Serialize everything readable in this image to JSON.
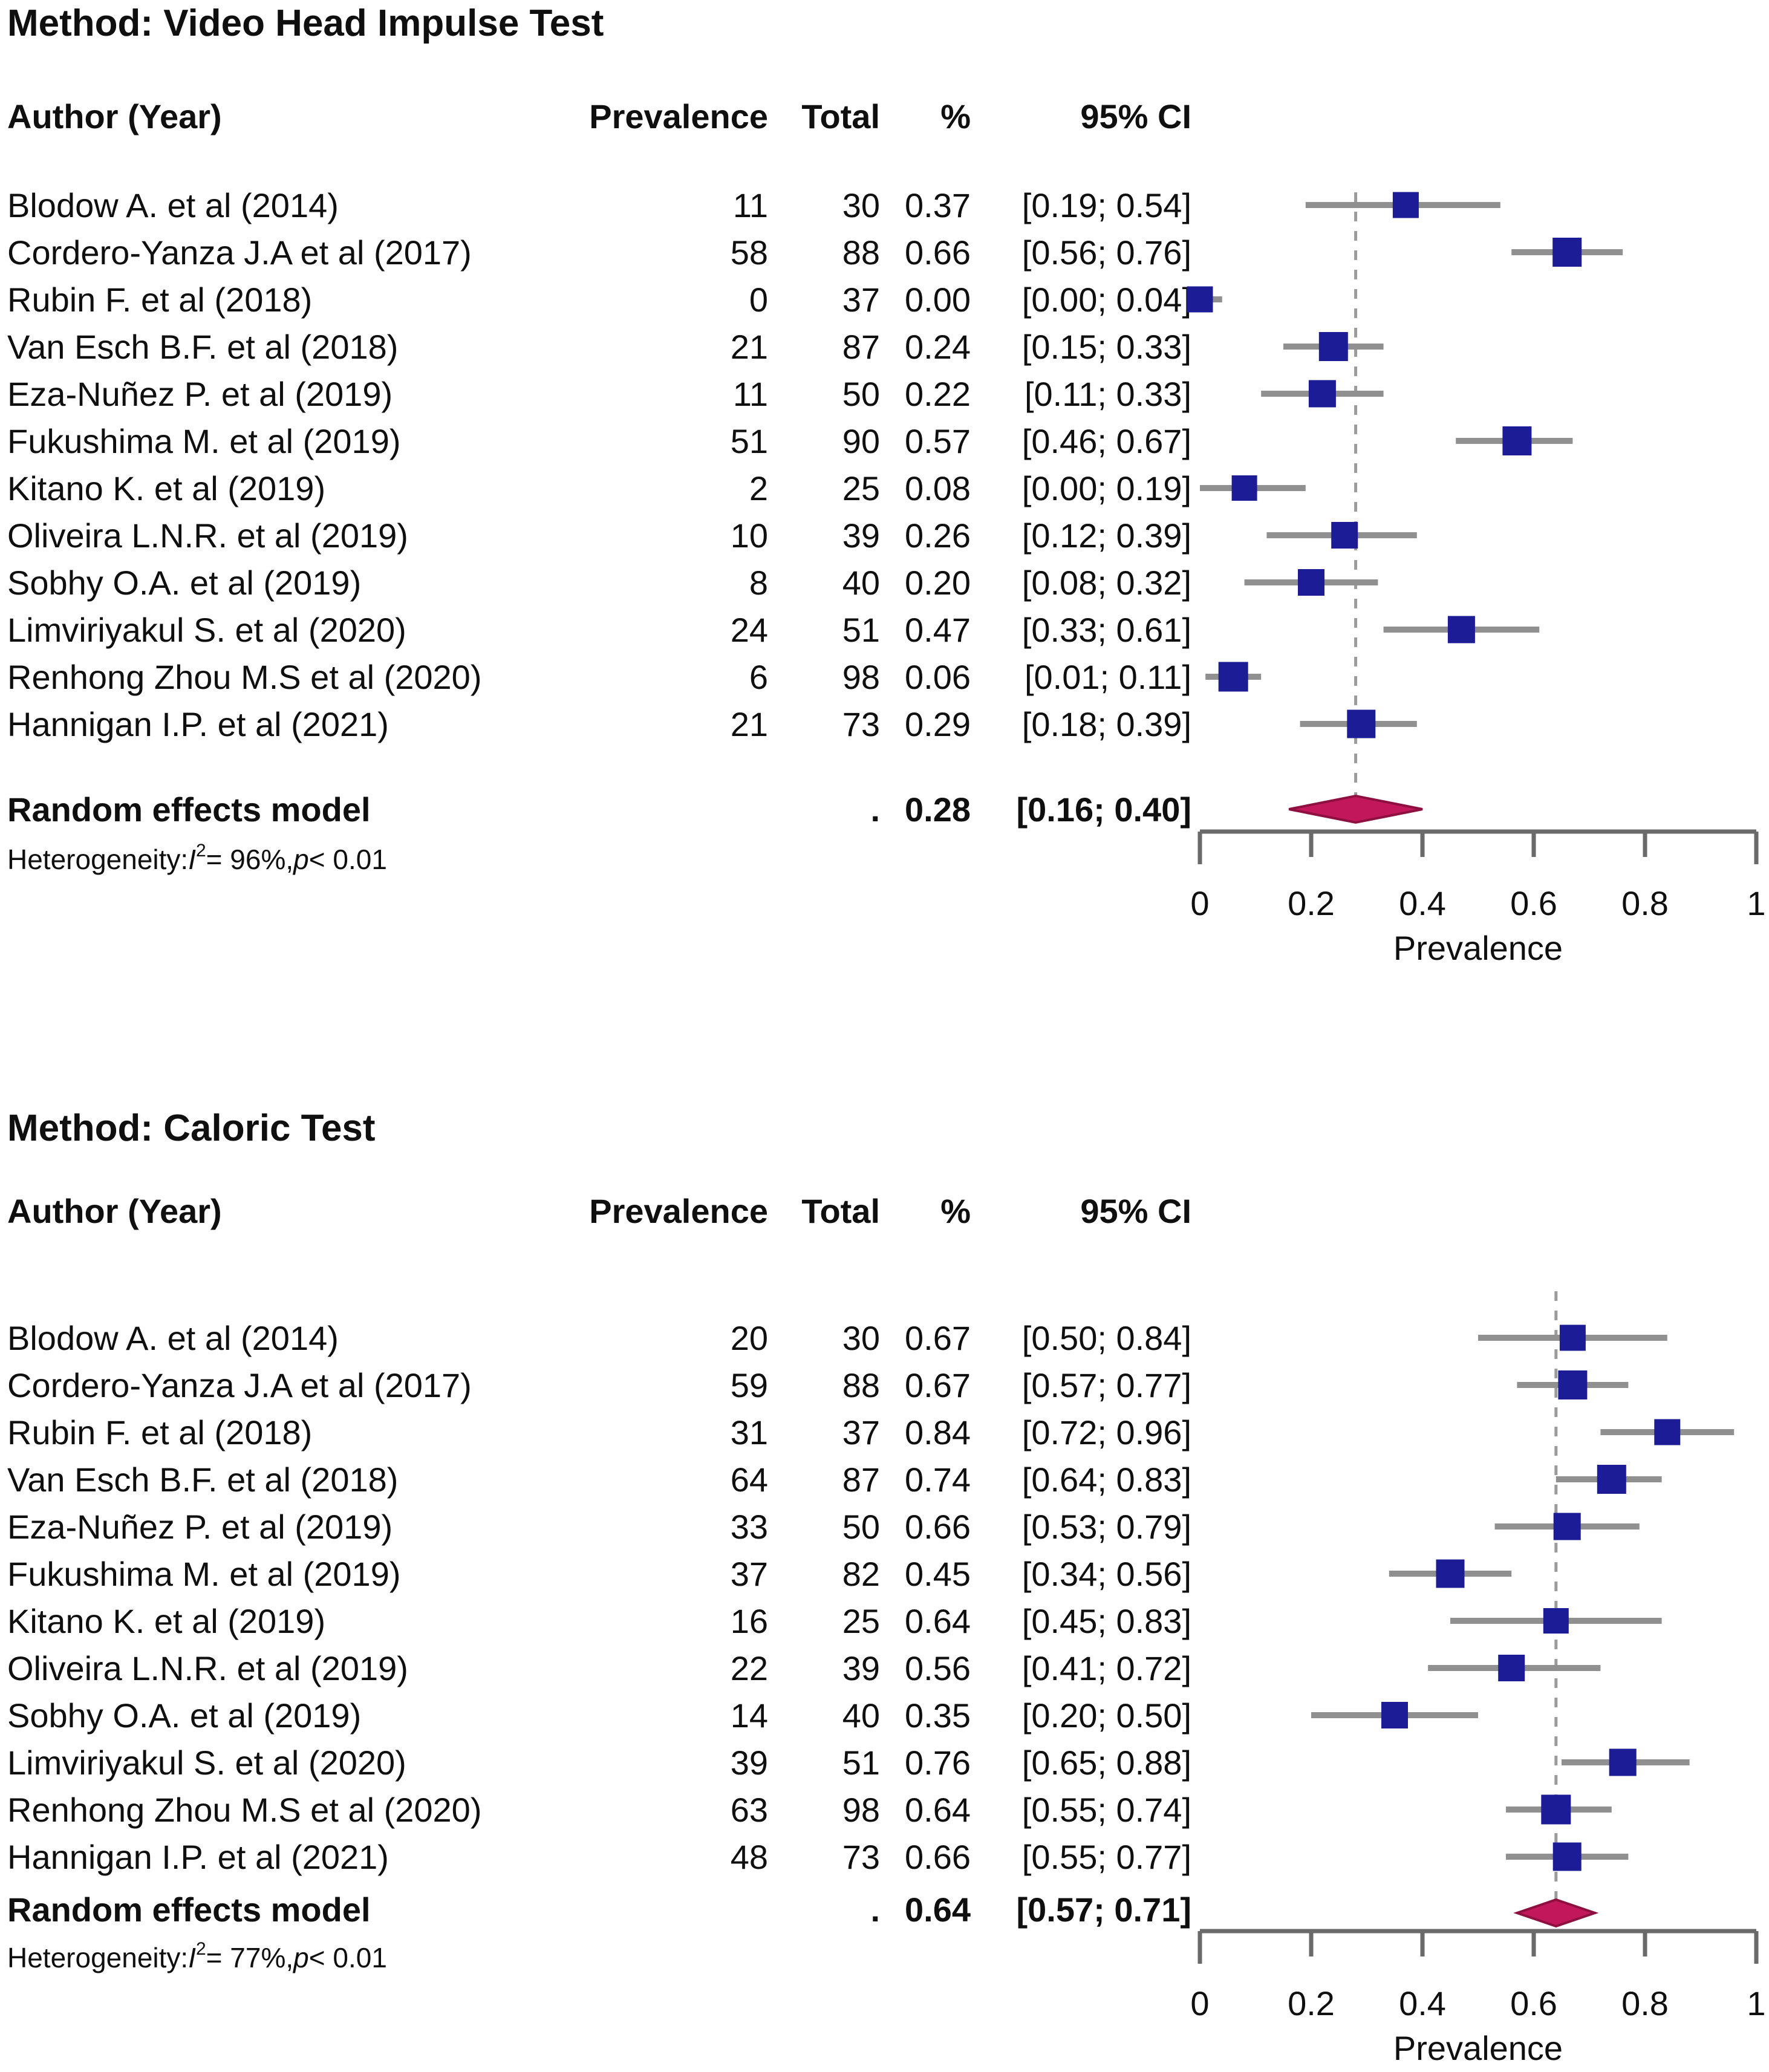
{
  "colors": {
    "text": "#0f0f0f",
    "square": "#1c1c96",
    "whisker": "#909090",
    "dashed_line": "#9b9b9b",
    "diamond_fill": "#c2185b",
    "diamond_stroke": "#8e1040",
    "axis": "#6a6a6a"
  },
  "chart_data": [
    {
      "type": "forest",
      "title": "Method: Video Head Impulse Test",
      "columns": [
        "Author (Year)",
        "Prevalence",
        "Total",
        "%",
        "95% CI"
      ],
      "xlabel": "Prevalence",
      "xlim": [
        0,
        1
      ],
      "xticks": [
        0,
        0.2,
        0.4,
        0.6,
        0.8,
        1
      ],
      "xtick_labels": [
        "0",
        "0.2",
        "0.4",
        "0.6",
        "0.8",
        "1"
      ],
      "studies": [
        {
          "author": "Blodow A. et al (2014)",
          "prevalence": "11",
          "total": "30",
          "pct": "0.37",
          "ci_text": "[0.19; 0.54]",
          "est": 0.37,
          "lo": 0.19,
          "hi": 0.54,
          "n": 30
        },
        {
          "author": "Cordero-Yanza J.A et al (2017)",
          "prevalence": "58",
          "total": "88",
          "pct": "0.66",
          "ci_text": "[0.56; 0.76]",
          "est": 0.66,
          "lo": 0.56,
          "hi": 0.76,
          "n": 88
        },
        {
          "author": "Rubin F. et al (2018)",
          "prevalence": "0",
          "total": "37",
          "pct": "0.00",
          "ci_text": "[0.00; 0.04]",
          "est": 0.0,
          "lo": 0.0,
          "hi": 0.04,
          "n": 37
        },
        {
          "author": "Van Esch B.F. et al (2018)",
          "prevalence": "21",
          "total": "87",
          "pct": "0.24",
          "ci_text": "[0.15; 0.33]",
          "est": 0.24,
          "lo": 0.15,
          "hi": 0.33,
          "n": 87
        },
        {
          "author": "Eza-Nuñez P. et al (2019)",
          "prevalence": "11",
          "total": "50",
          "pct": "0.22",
          "ci_text": "[0.11; 0.33]",
          "est": 0.22,
          "lo": 0.11,
          "hi": 0.33,
          "n": 50
        },
        {
          "author": "Fukushima M. et al (2019)",
          "prevalence": "51",
          "total": "90",
          "pct": "0.57",
          "ci_text": "[0.46; 0.67]",
          "est": 0.57,
          "lo": 0.46,
          "hi": 0.67,
          "n": 90
        },
        {
          "author": "Kitano K. et al (2019)",
          "prevalence": "2",
          "total": "25",
          "pct": "0.08",
          "ci_text": "[0.00; 0.19]",
          "est": 0.08,
          "lo": 0.0,
          "hi": 0.19,
          "n": 25
        },
        {
          "author": "Oliveira L.N.R. et al (2019)",
          "prevalence": "10",
          "total": "39",
          "pct": "0.26",
          "ci_text": "[0.12; 0.39]",
          "est": 0.26,
          "lo": 0.12,
          "hi": 0.39,
          "n": 39
        },
        {
          "author": "Sobhy O.A. et al (2019)",
          "prevalence": "8",
          "total": "40",
          "pct": "0.20",
          "ci_text": "[0.08; 0.32]",
          "est": 0.2,
          "lo": 0.08,
          "hi": 0.32,
          "n": 40
        },
        {
          "author": "Limviriyakul S. et al (2020)",
          "prevalence": "24",
          "total": "51",
          "pct": "0.47",
          "ci_text": "[0.33; 0.61]",
          "est": 0.47,
          "lo": 0.33,
          "hi": 0.61,
          "n": 51
        },
        {
          "author": "Renhong Zhou M.S et al (2020)",
          "prevalence": "6",
          "total": "98",
          "pct": "0.06",
          "ci_text": "[0.01; 0.11]",
          "est": 0.06,
          "lo": 0.01,
          "hi": 0.11,
          "n": 98
        },
        {
          "author": "Hannigan I.P. et al (2021)",
          "prevalence": "21",
          "total": "73",
          "pct": "0.29",
          "ci_text": "[0.18; 0.39]",
          "est": 0.29,
          "lo": 0.18,
          "hi": 0.39,
          "n": 73
        }
      ],
      "pooled": {
        "label": "Random effects model",
        "dot": ".",
        "pct": "0.28",
        "ci_text": "[0.16; 0.40]",
        "est": 0.28,
        "lo": 0.16,
        "hi": 0.4
      },
      "heterogeneity": {
        "prefix": "Heterogeneity: ",
        "i_label": "I",
        "sup": "2",
        "mid": " = 96%, ",
        "p_label": "p",
        "suffix": " < 0.01"
      }
    },
    {
      "type": "forest",
      "title": "Method: Caloric Test",
      "columns": [
        "Author (Year)",
        "Prevalence",
        "Total",
        "%",
        "95% CI"
      ],
      "xlabel": "Prevalence",
      "xlim": [
        0,
        1
      ],
      "xticks": [
        0,
        0.2,
        0.4,
        0.6,
        0.8,
        1
      ],
      "xtick_labels": [
        "0",
        "0.2",
        "0.4",
        "0.6",
        "0.8",
        "1"
      ],
      "studies": [
        {
          "author": "Blodow A. et al (2014)",
          "prevalence": "20",
          "total": "30",
          "pct": "0.67",
          "ci_text": "[0.50; 0.84]",
          "est": 0.67,
          "lo": 0.5,
          "hi": 0.84,
          "n": 30
        },
        {
          "author": "Cordero-Yanza J.A et al (2017)",
          "prevalence": "59",
          "total": "88",
          "pct": "0.67",
          "ci_text": "[0.57; 0.77]",
          "est": 0.67,
          "lo": 0.57,
          "hi": 0.77,
          "n": 88
        },
        {
          "author": "Rubin F. et al (2018)",
          "prevalence": "31",
          "total": "37",
          "pct": "0.84",
          "ci_text": "[0.72; 0.96]",
          "est": 0.84,
          "lo": 0.72,
          "hi": 0.96,
          "n": 37
        },
        {
          "author": "Van Esch B.F. et al (2018)",
          "prevalence": "64",
          "total": "87",
          "pct": "0.74",
          "ci_text": "[0.64; 0.83]",
          "est": 0.74,
          "lo": 0.64,
          "hi": 0.83,
          "n": 87
        },
        {
          "author": "Eza-Nuñez P. et al (2019)",
          "prevalence": "33",
          "total": "50",
          "pct": "0.66",
          "ci_text": "[0.53; 0.79]",
          "est": 0.66,
          "lo": 0.53,
          "hi": 0.79,
          "n": 50
        },
        {
          "author": "Fukushima M. et al (2019)",
          "prevalence": "37",
          "total": "82",
          "pct": "0.45",
          "ci_text": "[0.34; 0.56]",
          "est": 0.45,
          "lo": 0.34,
          "hi": 0.56,
          "n": 82
        },
        {
          "author": "Kitano K. et al (2019)",
          "prevalence": "16",
          "total": "25",
          "pct": "0.64",
          "ci_text": "[0.45; 0.83]",
          "est": 0.64,
          "lo": 0.45,
          "hi": 0.83,
          "n": 25
        },
        {
          "author": "Oliveira L.N.R. et al (2019)",
          "prevalence": "22",
          "total": "39",
          "pct": "0.56",
          "ci_text": "[0.41; 0.72]",
          "est": 0.56,
          "lo": 0.41,
          "hi": 0.72,
          "n": 39
        },
        {
          "author": "Sobhy O.A. et al (2019)",
          "prevalence": "14",
          "total": "40",
          "pct": "0.35",
          "ci_text": "[0.20; 0.50]",
          "est": 0.35,
          "lo": 0.2,
          "hi": 0.5,
          "n": 40
        },
        {
          "author": "Limviriyakul S. et al (2020)",
          "prevalence": "39",
          "total": "51",
          "pct": "0.76",
          "ci_text": "[0.65; 0.88]",
          "est": 0.76,
          "lo": 0.65,
          "hi": 0.88,
          "n": 51
        },
        {
          "author": "Renhong Zhou M.S et al (2020)",
          "prevalence": "63",
          "total": "98",
          "pct": "0.64",
          "ci_text": "[0.55; 0.74]",
          "est": 0.64,
          "lo": 0.55,
          "hi": 0.74,
          "n": 98
        },
        {
          "author": "Hannigan I.P. et al (2021)",
          "prevalence": "48",
          "total": "73",
          "pct": "0.66",
          "ci_text": "[0.55; 0.77]",
          "est": 0.66,
          "lo": 0.55,
          "hi": 0.77,
          "n": 73
        }
      ],
      "pooled": {
        "label": "Random effects model",
        "dot": ".",
        "pct": "0.64",
        "ci_text": "[0.57; 0.71]",
        "est": 0.64,
        "lo": 0.57,
        "hi": 0.71
      },
      "heterogeneity": {
        "prefix": "Heterogeneity: ",
        "i_label": "I",
        "sup": "2",
        "mid": " = 77%, ",
        "p_label": "p",
        "suffix": " < 0.01"
      }
    }
  ]
}
